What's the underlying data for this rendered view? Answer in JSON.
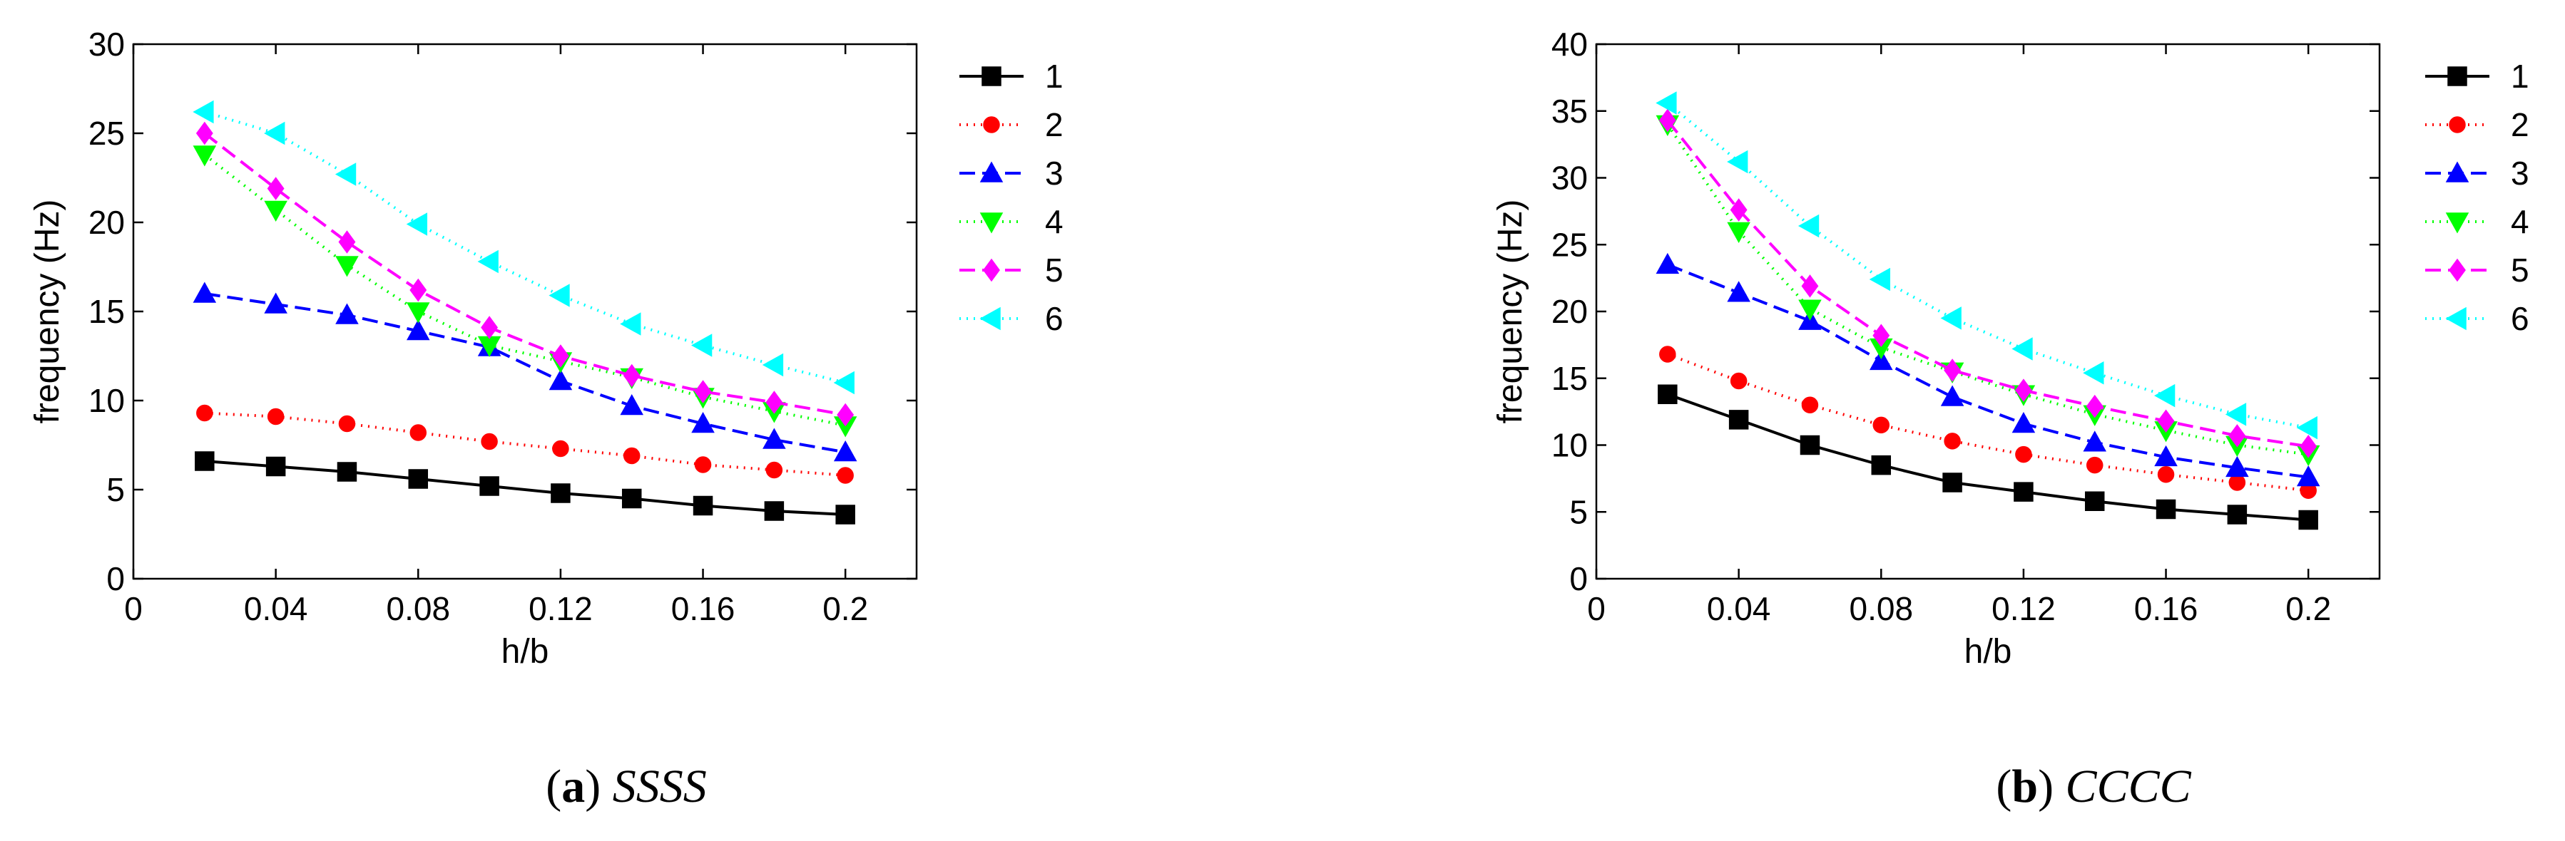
{
  "chart_data": [
    {
      "type": "line",
      "caption_letter": "a",
      "caption_text": "SSSS",
      "xlabel": "h/b",
      "ylabel": "frequency (Hz)",
      "xlim": [
        0,
        0.22
      ],
      "ylim": [
        0,
        30
      ],
      "xticks": [
        0,
        0.04,
        0.08,
        0.12,
        0.16,
        0.2
      ],
      "xtick_labels": [
        "0",
        "0.04",
        "0.08",
        "0.12",
        "0.16",
        "0.2"
      ],
      "yticks": [
        0,
        5,
        10,
        15,
        20,
        25,
        30
      ],
      "ytick_labels": [
        "0",
        "5",
        "10",
        "15",
        "20",
        "25",
        "30"
      ],
      "grid": false,
      "legend_position": "outside-right",
      "x": [
        0.02,
        0.04,
        0.06,
        0.08,
        0.1,
        0.12,
        0.14,
        0.16,
        0.18,
        0.2
      ],
      "series": [
        {
          "name": "1",
          "values": [
            6.6,
            6.3,
            6.0,
            5.6,
            5.2,
            4.8,
            4.5,
            4.1,
            3.8,
            3.6
          ]
        },
        {
          "name": "2",
          "values": [
            9.3,
            9.1,
            8.7,
            8.2,
            7.7,
            7.3,
            6.9,
            6.4,
            6.1,
            5.8
          ]
        },
        {
          "name": "3",
          "values": [
            16.0,
            15.4,
            14.8,
            13.9,
            13.0,
            11.1,
            9.7,
            8.7,
            7.8,
            7.1
          ]
        },
        {
          "name": "4",
          "values": [
            23.8,
            20.7,
            17.6,
            15.0,
            13.1,
            12.2,
            11.3,
            10.2,
            9.4,
            8.6
          ]
        },
        {
          "name": "5",
          "values": [
            25.0,
            21.9,
            18.9,
            16.2,
            14.1,
            12.5,
            11.4,
            10.5,
            9.9,
            9.2
          ]
        },
        {
          "name": "6",
          "values": [
            26.2,
            25.0,
            22.7,
            19.9,
            17.8,
            15.9,
            14.3,
            13.1,
            12.0,
            11.0
          ]
        }
      ]
    },
    {
      "type": "line",
      "caption_letter": "b",
      "caption_text": "CCCC",
      "xlabel": "h/b",
      "ylabel": "frequency (Hz)",
      "xlim": [
        0,
        0.22
      ],
      "ylim": [
        0,
        40
      ],
      "xticks": [
        0,
        0.04,
        0.08,
        0.12,
        0.16,
        0.2
      ],
      "xtick_labels": [
        "0",
        "0.04",
        "0.08",
        "0.12",
        "0.16",
        "0.2"
      ],
      "yticks": [
        0,
        5,
        10,
        15,
        20,
        25,
        30,
        35,
        40
      ],
      "ytick_labels": [
        "0",
        "5",
        "10",
        "15",
        "20",
        "25",
        "30",
        "35",
        "40"
      ],
      "grid": false,
      "legend_position": "outside-right",
      "x": [
        0.02,
        0.04,
        0.06,
        0.08,
        0.1,
        0.12,
        0.14,
        0.16,
        0.18,
        0.2
      ],
      "series": [
        {
          "name": "1",
          "values": [
            13.8,
            11.9,
            10.0,
            8.5,
            7.2,
            6.5,
            5.8,
            5.2,
            4.8,
            4.4
          ]
        },
        {
          "name": "2",
          "values": [
            16.8,
            14.8,
            13.0,
            11.5,
            10.3,
            9.3,
            8.5,
            7.8,
            7.2,
            6.6
          ]
        },
        {
          "name": "3",
          "values": [
            23.5,
            21.4,
            19.3,
            16.3,
            13.6,
            11.6,
            10.2,
            9.1,
            8.3,
            7.6
          ]
        },
        {
          "name": "4",
          "values": [
            34.0,
            26.0,
            20.2,
            17.3,
            15.5,
            13.8,
            12.3,
            11.1,
            10.0,
            9.3
          ]
        },
        {
          "name": "5",
          "values": [
            34.3,
            27.6,
            21.9,
            18.2,
            15.6,
            14.1,
            12.9,
            11.8,
            10.7,
            9.9
          ]
        },
        {
          "name": "6",
          "values": [
            35.6,
            31.2,
            26.4,
            22.4,
            19.5,
            17.2,
            15.4,
            13.7,
            12.3,
            11.3
          ]
        }
      ]
    }
  ],
  "series_styles": [
    {
      "color": "#000000",
      "dash": "",
      "marker": "square"
    },
    {
      "color": "#ff0000",
      "dash": "2 8",
      "marker": "circle"
    },
    {
      "color": "#0000ff",
      "dash": "22 10",
      "marker": "triangle-up"
    },
    {
      "color": "#00ff00",
      "dash": "2 8",
      "marker": "triangle-down"
    },
    {
      "color": "#ff00ff",
      "dash": "22 10",
      "marker": "diamond"
    },
    {
      "color": "#00ffff",
      "dash": "2 8",
      "marker": "triangle-left"
    }
  ]
}
